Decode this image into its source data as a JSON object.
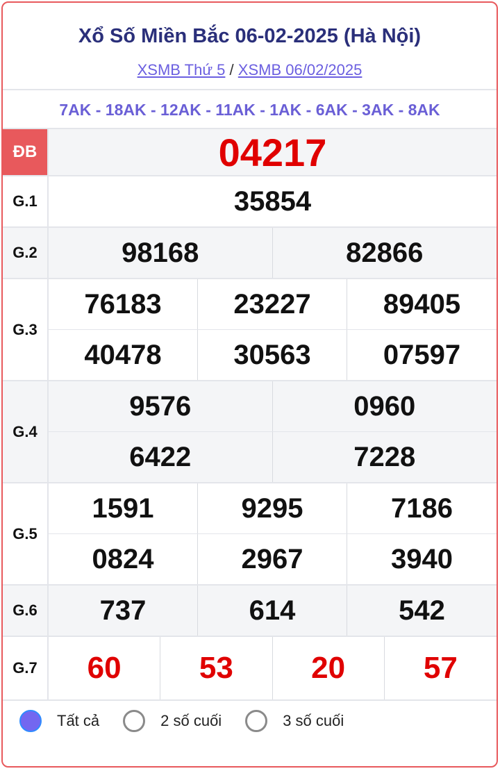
{
  "header": {
    "title": "Xổ Số Miền Bắc 06-02-2025 (Hà Nội)",
    "link_day": "XSMB Thứ 5",
    "separator": "/",
    "link_date": "XSMB 06/02/2025"
  },
  "codes": "7AK - 18AK - 12AK - 11AK - 1AK - 6AK - 3AK - 8AK",
  "prizes": {
    "db": {
      "label": "ĐB",
      "numbers": [
        "04217"
      ]
    },
    "g1": {
      "label": "G.1",
      "numbers": [
        "35854"
      ]
    },
    "g2": {
      "label": "G.2",
      "numbers": [
        "98168",
        "82866"
      ]
    },
    "g3": {
      "label": "G.3",
      "numbers": [
        "76183",
        "23227",
        "89405",
        "40478",
        "30563",
        "07597"
      ]
    },
    "g4": {
      "label": "G.4",
      "numbers": [
        "9576",
        "0960",
        "6422",
        "7228"
      ]
    },
    "g5": {
      "label": "G.5",
      "numbers": [
        "1591",
        "9295",
        "7186",
        "0824",
        "2967",
        "3940"
      ]
    },
    "g6": {
      "label": "G.6",
      "numbers": [
        "737",
        "614",
        "542"
      ]
    },
    "g7": {
      "label": "G.7",
      "numbers": [
        "60",
        "53",
        "20",
        "57"
      ]
    }
  },
  "filter": {
    "options": [
      "Tất cả",
      "2 số cuối",
      "3 số cuối"
    ],
    "selected": "Tất cả"
  },
  "colors": {
    "accent": "#e8595c",
    "title": "#2a2f7a",
    "link": "#6b5fe0",
    "highlight": "#e00000",
    "radio_selected": "#7367f0"
  }
}
